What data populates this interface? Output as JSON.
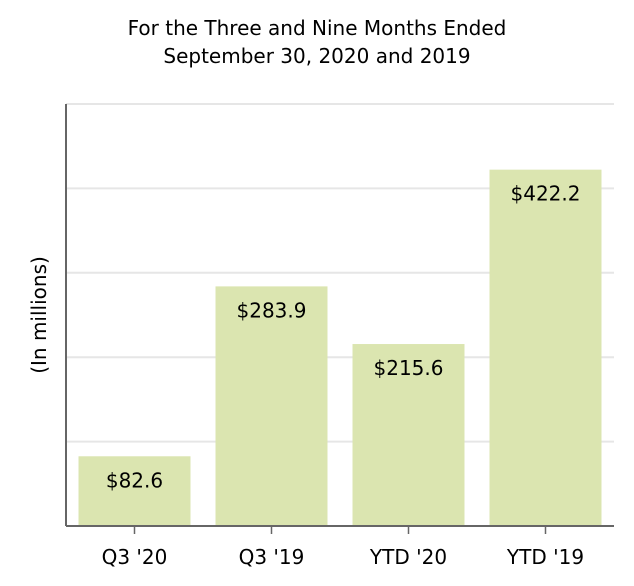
{
  "chart_data": {
    "type": "bar",
    "title_line1": "For the Three and Nine Months Ended",
    "title_line2": "September 30, 2020 and 2019",
    "ylabel": "(In millions)",
    "xlabel": "",
    "categories": [
      "Q3 '20",
      "Q3 '19",
      "YTD '20",
      "YTD '19"
    ],
    "values": [
      82.6,
      283.9,
      215.6,
      422.2
    ],
    "data_labels": [
      "$82.6",
      "$283.9",
      "$215.6",
      "$422.2"
    ],
    "ylim": [
      0,
      500
    ],
    "grid": true,
    "bar_color": "#dbe5b0",
    "grid_color": "#e6e6e6",
    "axis_color": "#666666"
  }
}
